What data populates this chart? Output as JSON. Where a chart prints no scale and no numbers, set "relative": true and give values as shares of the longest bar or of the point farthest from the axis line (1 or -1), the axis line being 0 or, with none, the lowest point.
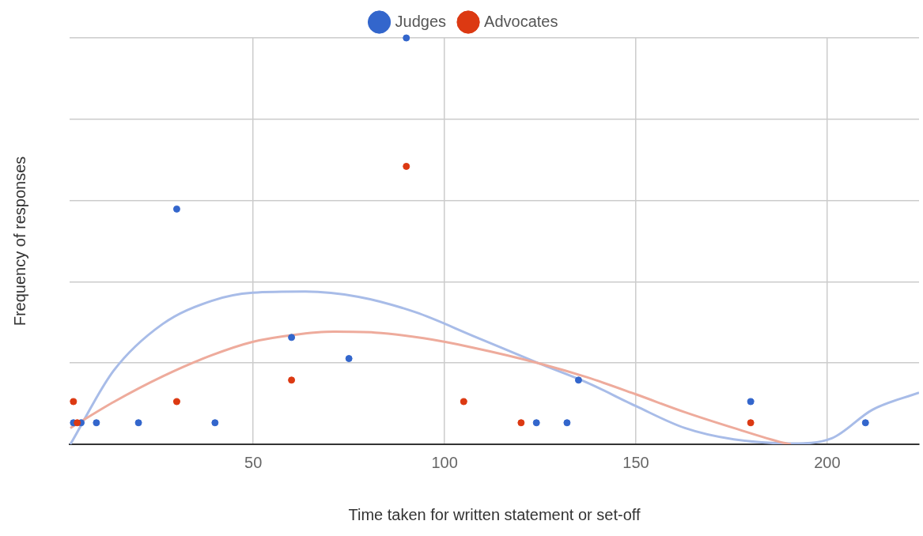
{
  "chart_data": {
    "type": "scatter",
    "xlabel": "Time taken for written statement or set-off",
    "ylabel": "Frequency of responses",
    "relative": true,
    "xlim": [
      2,
      224
    ],
    "xticks": [
      50,
      100,
      150,
      200
    ],
    "tick_labels": "x",
    "grid": true,
    "legend": "top",
    "series": [
      {
        "name": "Judges",
        "color": "#3366cc",
        "marker": "circle",
        "x": [
          3,
          5,
          9,
          20,
          30,
          40,
          60,
          75,
          90,
          124,
          132,
          135,
          180,
          210
        ],
        "values": [
          0.053,
          0.053,
          0.053,
          0.053,
          0.579,
          0.053,
          0.263,
          0.211,
          1,
          0.053,
          0.053,
          0.158,
          0.105,
          0.053
        ]
      },
      {
        "name": "Advocates",
        "color": "#dc3912",
        "marker": "circle",
        "x": [
          3,
          4,
          30,
          60,
          90,
          105,
          120,
          180
        ],
        "values": [
          0.105,
          0.053,
          0.105,
          0.158,
          0.684,
          0.105,
          0.053,
          0.053
        ]
      },
      {
        "type": "line",
        "color": "#a8bce8",
        "marker": "none",
        "x": [
          2.2,
          13.5,
          26.3,
          39.1,
          49.8,
          63.6,
          77.5,
          92.4,
          107.4,
          124.4,
          137.2,
          150,
          162.8,
          175.6,
          190.5,
          201.2,
          211.8,
          224
        ],
        "values": [
          0,
          0.181,
          0.296,
          0.353,
          0.373,
          0.376,
          0.363,
          0.325,
          0.267,
          0.2,
          0.152,
          0.094,
          0.04,
          0.012,
          0.002,
          0.015,
          0.085,
          0.127
        ]
      },
      {
        "type": "line",
        "color": "#eeab9c",
        "marker": "none",
        "x": [
          2.2,
          13.5,
          26.3,
          39.1,
          49.8,
          60.4,
          71.1,
          81.8,
          94.5,
          107.4,
          124.4,
          137.2,
          150,
          162.8,
          175.6,
          188.4,
          190.5
        ],
        "values": [
          0.04,
          0.104,
          0.167,
          0.219,
          0.252,
          0.269,
          0.277,
          0.275,
          0.261,
          0.238,
          0.2,
          0.165,
          0.123,
          0.079,
          0.04,
          0.004,
          0
        ]
      }
    ]
  }
}
